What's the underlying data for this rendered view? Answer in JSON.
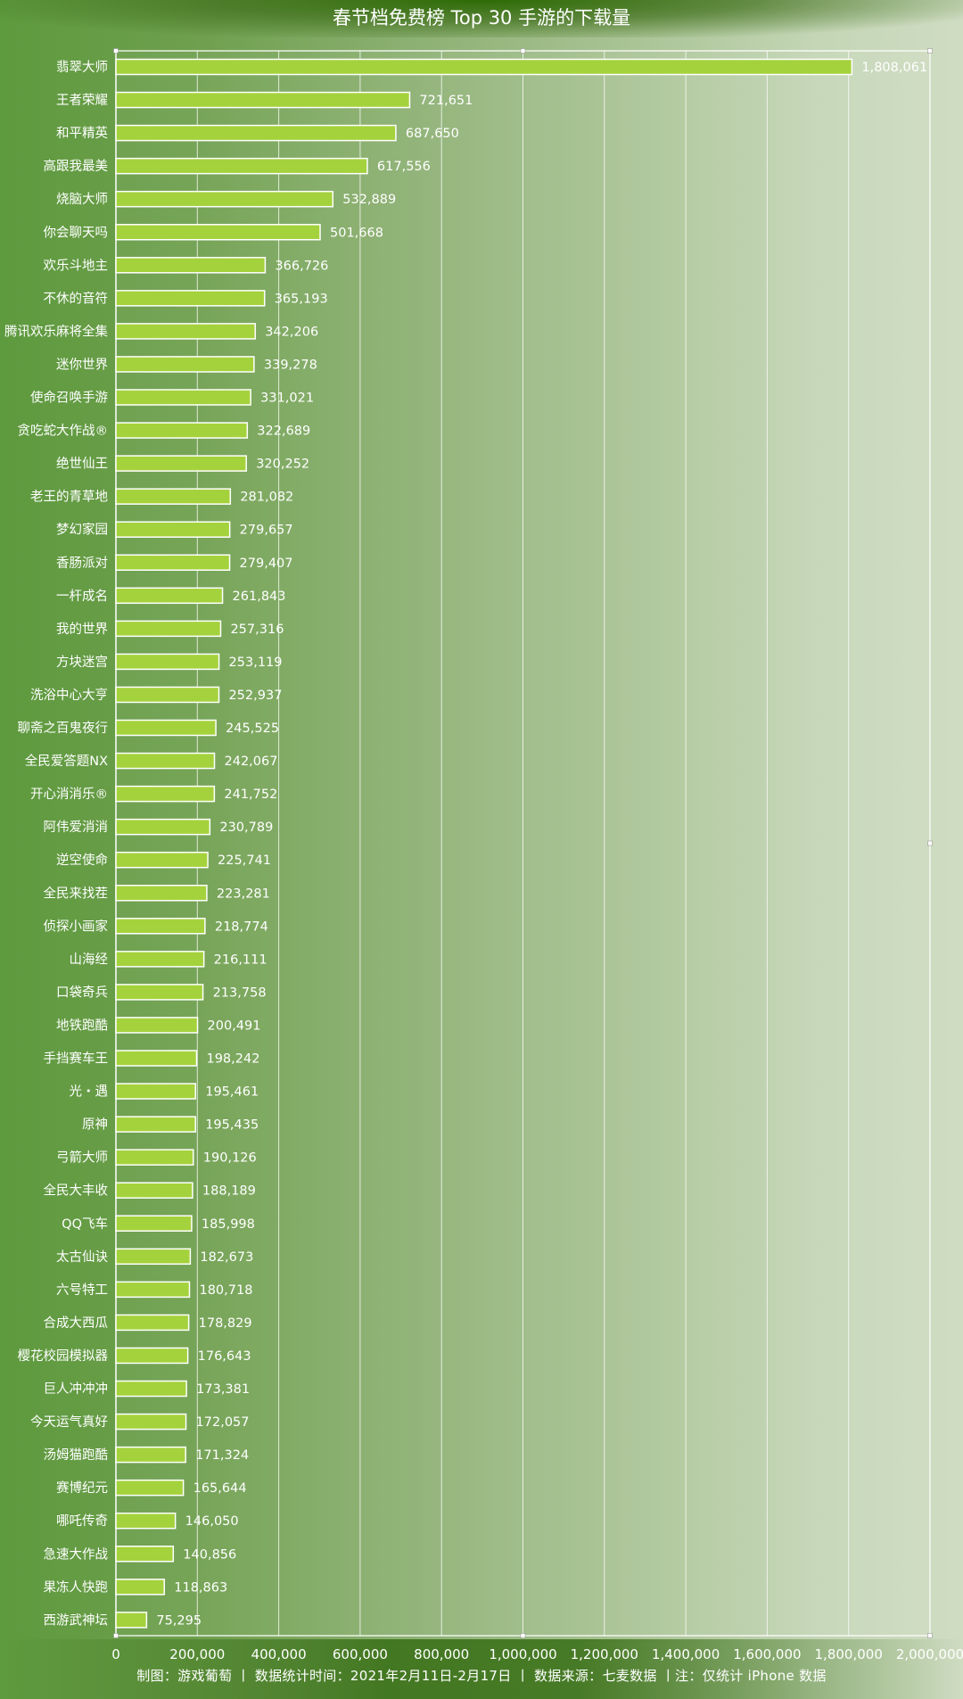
{
  "chart_data": {
    "type": "bar",
    "orientation": "horizontal",
    "title": "春节档免费榜 Top 30 手游的下载量",
    "credit": "制图：游戏葡萄  丨  数据统计时间：2021年2月11日-2月17日  丨  数据来源：七麦数据  丨注：仅统计 iPhone 数据",
    "xlim": [
      0,
      2000000
    ],
    "xticks": [
      "0",
      "200,000",
      "400,000",
      "600,000",
      "800,000",
      "1,000,000",
      "1,200,000",
      "1,400,000",
      "1,600,000",
      "1,800,000",
      "2,000,000"
    ],
    "grid": true,
    "bar_color": "#a4d23c",
    "categories": [
      "翡翠大师",
      "王者荣耀",
      "和平精英",
      "高跟我最美",
      "烧脑大师",
      "你会聊天吗",
      "欢乐斗地主",
      "不休的音符",
      "腾讯欢乐麻将全集",
      "迷你世界",
      "使命召唤手游",
      "贪吃蛇大作战®",
      "绝世仙王",
      "老王的青草地",
      "梦幻家园",
      "香肠派对",
      "一杆成名",
      "我的世界",
      "方块迷宫",
      "洗浴中心大亨",
      "聊斋之百鬼夜行",
      "全民爱答题NX",
      "开心消消乐®",
      "阿伟爱消消",
      "逆空使命",
      "全民来找茬",
      "侦探小画家",
      "山海经",
      "口袋奇兵",
      "地铁跑酷",
      "手挡赛车王",
      "光・遇",
      "原神",
      "弓箭大师",
      "全民大丰收",
      "QQ飞车",
      "太古仙诀",
      "六号特工",
      "合成大西瓜",
      "樱花校园模拟器",
      "巨人冲冲冲",
      "今天运气真好",
      "汤姆猫跑酷",
      "赛博纪元",
      "哪吒传奇",
      "急速大作战",
      "果冻人快跑",
      "西游武神坛"
    ],
    "values": [
      1808061,
      721651,
      687650,
      617556,
      532889,
      501668,
      366726,
      365193,
      342206,
      339278,
      331021,
      322689,
      320252,
      281082,
      279657,
      279407,
      261843,
      257316,
      253119,
      252937,
      245525,
      242067,
      241752,
      230789,
      225741,
      223281,
      218774,
      216111,
      213758,
      200491,
      198242,
      195461,
      195435,
      190126,
      188189,
      185998,
      182673,
      180718,
      178829,
      176643,
      173381,
      172057,
      171324,
      165644,
      146050,
      140856,
      118863,
      75295
    ],
    "value_labels": [
      "1,808,061",
      "721,651",
      "687,650",
      "617,556",
      "532,889",
      "501,668",
      "366,726",
      "365,193",
      "342,206",
      "339,278",
      "331,021",
      "322,689",
      "320,252",
      "281,082",
      "279,657",
      "279,407",
      "261,843",
      "257,316",
      "253,119",
      "252,937",
      "245,525",
      "242,067",
      "241,752",
      "230,789",
      "225,741",
      "223,281",
      "218,774",
      "216,111",
      "213,758",
      "200,491",
      "198,242",
      "195,461",
      "195,435",
      "190,126",
      "188,189",
      "185,998",
      "182,673",
      "180,718",
      "178,829",
      "176,643",
      "173,381",
      "172,057",
      "171,324",
      "165,644",
      "146,050",
      "140,856",
      "118,863",
      "75,295"
    ]
  }
}
